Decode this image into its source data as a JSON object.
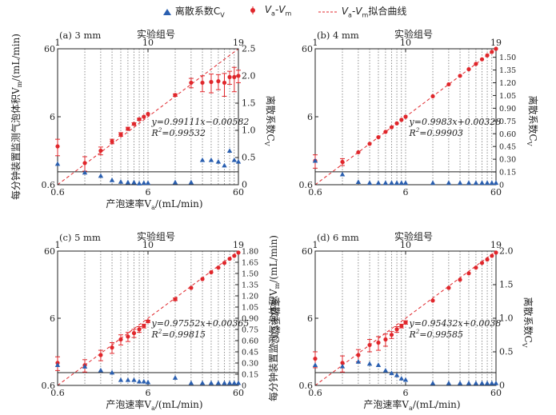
{
  "legend": {
    "triangle_label": "离散系数C",
    "triangle_sub": "V",
    "point_va": "V",
    "point_va_sub": "a",
    "point_dash": "-",
    "point_vm": "V",
    "point_vm_sub": "m",
    "curve_va": "V",
    "curve_va_sub": "a",
    "curve_dash": "-",
    "curve_vm": "V",
    "curve_vm_sub": "m",
    "curve_suffix": "拟合曲线"
  },
  "colors": {
    "scatter_red": "#e0262b",
    "triangle_blue": "#2a5fb0",
    "fit_line": "#e0262b",
    "axis": "#222222",
    "right_axis": "#2a5fb0"
  },
  "chart_data": [
    {
      "panel": "(a) 3 mm",
      "type": "scatter",
      "top_axis_label": "实验组号",
      "top_ticks": [
        "1",
        "10",
        "19"
      ],
      "xlabel": "产泡速率V",
      "xlabel_sub": "a",
      "xlabel_unit": "/(mL/min)",
      "ylabel": "每分钟装置监测气泡体积V",
      "ylabel_sub": "m",
      "ylabel_unit": "/(mL/min)",
      "y2label": "离散系数C",
      "y2label_sub": "V",
      "xlim": [
        0.6,
        60
      ],
      "ylim": [
        0.6,
        60
      ],
      "x_ticks": [
        "0.6",
        "6",
        "60"
      ],
      "y_ticks": [
        "0.6",
        "6",
        "60"
      ],
      "x_scale": "log",
      "y_scale": "log",
      "y2lim": [
        0,
        2.5
      ],
      "y2_ticks": [
        "0",
        "0.5",
        "1.0",
        "1.5",
        "2.0",
        "2.5"
      ],
      "fit_equation": "y=0.99111x−0.00582",
      "r2_label": "R",
      "r2_value": "=0.99532",
      "series": [
        {
          "name": "Va-Vm",
          "x": [
            0.6,
            1.2,
            1.8,
            2.4,
            3.0,
            3.6,
            4.2,
            4.8,
            5.4,
            6.0,
            12.0,
            18.0,
            24.0,
            30.0,
            36.0,
            42.0,
            48.0,
            54.0,
            60.0
          ],
          "y": [
            2.2,
            1.25,
            1.9,
            2.6,
            3.3,
            4.0,
            4.7,
            5.5,
            6.0,
            6.6,
            12.5,
            19.0,
            19.0,
            19.5,
            20.0,
            19.0,
            23.0,
            23.0,
            24.0
          ],
          "err": [
            0.6,
            0.3,
            0.25,
            0.2,
            0.2,
            0.2,
            0.2,
            0.2,
            0.2,
            0.2,
            0.5,
            3,
            5,
            6,
            5,
            7,
            5,
            9,
            5
          ]
        },
        {
          "name": "CV",
          "x": [
            0.6,
            1.2,
            1.8,
            2.4,
            3.0,
            3.6,
            4.2,
            4.8,
            5.4,
            6.0,
            12.0,
            18.0,
            24.0,
            30.0,
            36.0,
            42.0,
            48.0,
            54.0,
            60.0
          ],
          "y": [
            0.38,
            0.22,
            0.16,
            0.08,
            0.05,
            0.04,
            0.04,
            0.02,
            0.03,
            0.03,
            0.04,
            0.04,
            0.45,
            0.45,
            0.42,
            0.35,
            0.62,
            0.45,
            0.42
          ]
        }
      ]
    },
    {
      "panel": "(b) 4 mm",
      "type": "scatter",
      "top_axis_label": "实验组号",
      "top_ticks": [
        "1",
        "10",
        "19"
      ],
      "xlabel": "",
      "xlabel_sub": "",
      "xlabel_unit": "",
      "ylabel": "",
      "ylabel_sub": "",
      "ylabel_unit": "",
      "y2label": "离散系数C",
      "y2label_sub": "V",
      "xlim": [
        0.6,
        60
      ],
      "ylim": [
        0.6,
        60
      ],
      "x_ticks": [
        "0.6",
        "6",
        "60"
      ],
      "y_ticks": [
        "0.6",
        "6",
        "60"
      ],
      "x_scale": "log",
      "y_scale": "log",
      "y2lim": [
        0,
        1.6
      ],
      "y2_ticks": [
        "0",
        "0.15",
        "0.30",
        "0.45",
        "0.60",
        "0.75",
        "0.90",
        "1.05",
        "1.20",
        "1.35",
        "1.50"
      ],
      "fit_equation": "y=0.9983x+0.00328",
      "r2_label": "R",
      "r2_value": "=0.99903",
      "series": [
        {
          "name": "Va-Vm",
          "x": [
            0.6,
            1.2,
            1.8,
            2.4,
            3.0,
            3.6,
            4.2,
            4.8,
            5.4,
            6.0,
            12.0,
            18.0,
            24.0,
            30.0,
            36.0,
            42.0,
            48.0,
            54.0,
            60.0
          ],
          "y": [
            1.35,
            1.3,
            1.8,
            2.4,
            3.0,
            3.6,
            4.2,
            4.8,
            5.4,
            6.0,
            12.0,
            18.0,
            24.0,
            30.0,
            36.0,
            42.0,
            48.0,
            54.0,
            60.0
          ],
          "err": [
            0.3,
            0.15,
            0.05,
            0.05,
            0.05,
            0.05,
            0.05,
            0.05,
            0.05,
            0.05,
            0.3,
            0.3,
            0.3,
            0.3,
            0.3,
            0.3,
            0.3,
            0.3,
            0.3
          ]
        },
        {
          "name": "CV",
          "x": [
            0.6,
            1.2,
            1.8,
            2.4,
            3.0,
            3.6,
            4.2,
            4.8,
            5.4,
            6.0,
            12.0,
            18.0,
            24.0,
            30.0,
            36.0,
            42.0,
            48.0,
            54.0,
            60.0
          ],
          "y": [
            0.28,
            0.12,
            0.03,
            0.02,
            0.02,
            0.02,
            0.02,
            0.02,
            0.02,
            0.02,
            0.02,
            0.02,
            0.02,
            0.02,
            0.02,
            0.02,
            0.02,
            0.02,
            0.02
          ]
        }
      ]
    },
    {
      "panel": "(c) 5 mm",
      "type": "scatter",
      "top_axis_label": "实验组号",
      "top_ticks": [
        "1",
        "10",
        "19"
      ],
      "xlabel": "产泡速率V",
      "xlabel_sub": "a",
      "xlabel_unit": "/(mL/min)",
      "ylabel": "",
      "ylabel_sub": "",
      "ylabel_unit": "",
      "y2label": "离散系数C",
      "y2label_sub": "V",
      "xlim": [
        0.6,
        60
      ],
      "ylim": [
        0.6,
        60
      ],
      "x_ticks": [
        "0.6",
        "6",
        "60"
      ],
      "y_ticks": [
        "0.6",
        "6",
        "60"
      ],
      "x_scale": "log",
      "y_scale": "log",
      "y2lim": [
        0,
        1.8
      ],
      "y2_ticks": [
        "0",
        "0.15",
        "0.30",
        "0.45",
        "0.60",
        "0.75",
        "0.90",
        "1.05",
        "1.20",
        "1.35",
        "1.50",
        "1.65",
        "1.80"
      ],
      "fit_equation": "y=0.97552x+0.00365",
      "r2_label": "R",
      "r2_value": "=0.99815",
      "series": [
        {
          "name": "Va-Vm",
          "x": [
            0.6,
            1.2,
            1.8,
            2.4,
            3.0,
            3.6,
            4.2,
            4.8,
            5.4,
            6.0,
            12.0,
            18.0,
            24.0,
            30.0,
            36.0,
            42.0,
            48.0,
            54.0,
            60.0
          ],
          "y": [
            1.3,
            1.2,
            1.7,
            2.2,
            2.9,
            3.2,
            3.6,
            4.1,
            4.6,
            5.4,
            11.5,
            17.0,
            23.0,
            29.0,
            34.0,
            40.0,
            46.0,
            51.0,
            57.0
          ],
          "err": [
            0.3,
            0.25,
            0.3,
            0.4,
            0.5,
            0.5,
            0.5,
            0.4,
            0.3,
            0.2,
            0.5,
            0.3,
            0.3,
            0.3,
            0.3,
            0.3,
            0.3,
            0.3,
            0.3
          ]
        },
        {
          "name": "CV",
          "x": [
            0.6,
            1.2,
            1.8,
            2.4,
            3.0,
            3.6,
            4.2,
            4.8,
            5.4,
            6.0,
            12.0,
            18.0,
            24.0,
            30.0,
            36.0,
            42.0,
            48.0,
            54.0,
            60.0
          ],
          "y": [
            0.27,
            0.25,
            0.2,
            0.17,
            0.07,
            0.07,
            0.07,
            0.05,
            0.05,
            0.04,
            0.1,
            0.03,
            0.03,
            0.03,
            0.03,
            0.03,
            0.03,
            0.03,
            0.03
          ]
        }
      ]
    },
    {
      "panel": "(d) 6 mm",
      "type": "scatter",
      "top_axis_label": "实验组号",
      "top_ticks": [
        "1",
        "10",
        "19"
      ],
      "xlabel": "产泡速率V",
      "xlabel_sub": "a",
      "xlabel_unit": "/(mL/min)",
      "ylabel": "每分钟装置监测气泡体积V",
      "ylabel_sub": "m",
      "ylabel_unit": "/(mL/min)",
      "y2label": "离散系数C",
      "y2label_sub": "V",
      "xlim": [
        0.6,
        60
      ],
      "ylim": [
        0.6,
        60
      ],
      "x_ticks": [
        "0.6",
        "6",
        "60"
      ],
      "y_ticks": [
        "0.6",
        "6",
        "60"
      ],
      "x_scale": "log",
      "y_scale": "log",
      "y2lim": [
        0,
        2.0
      ],
      "y2_ticks": [
        "0",
        "0.5",
        "1.0",
        "1.5",
        "2.0"
      ],
      "fit_equation": "y=0.95432x+0.0038",
      "r2_label": "R",
      "r2_value": "=0.99585",
      "series": [
        {
          "name": "Va-Vm",
          "x": [
            0.6,
            1.2,
            1.8,
            2.4,
            3.0,
            3.6,
            4.2,
            4.8,
            5.4,
            6.0,
            12.0,
            18.0,
            24.0,
            30.0,
            36.0,
            42.0,
            48.0,
            54.0,
            60.0
          ],
          "y": [
            1.5,
            1.3,
            1.7,
            2.4,
            2.6,
            2.9,
            3.4,
            4.1,
            4.6,
            5.2,
            11.0,
            17.0,
            22.5,
            28.0,
            34.0,
            40.0,
            45.0,
            51.0,
            57.0
          ],
          "err": [
            0.4,
            0.35,
            0.35,
            0.5,
            0.6,
            0.6,
            0.4,
            0.4,
            0.3,
            0.3,
            0.3,
            0.3,
            0.3,
            0.3,
            0.3,
            0.3,
            0.3,
            0.3,
            0.3
          ]
        },
        {
          "name": "CV",
          "x": [
            0.6,
            1.2,
            1.8,
            2.4,
            3.0,
            3.6,
            4.2,
            4.8,
            5.4,
            6.0,
            12.0,
            18.0,
            24.0,
            30.0,
            36.0,
            42.0,
            48.0,
            54.0,
            60.0
          ],
          "y": [
            0.3,
            0.28,
            0.35,
            0.32,
            0.3,
            0.22,
            0.18,
            0.15,
            0.1,
            0.08,
            0.03,
            0.03,
            0.03,
            0.03,
            0.03,
            0.03,
            0.03,
            0.03,
            0.03
          ]
        }
      ]
    }
  ]
}
